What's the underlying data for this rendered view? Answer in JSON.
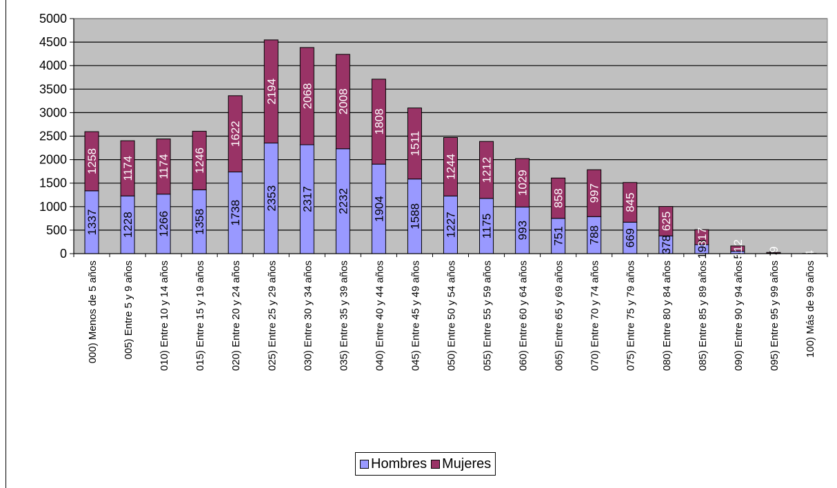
{
  "chart_data": {
    "type": "bar",
    "stacked": true,
    "title": "",
    "xlabel": "",
    "ylabel": "",
    "ylim": [
      0,
      5000
    ],
    "yticks": [
      0,
      500,
      1000,
      1500,
      2000,
      2500,
      3000,
      3500,
      4000,
      4500,
      5000
    ],
    "grid": true,
    "legend_position": "bottom",
    "plot_background": "#c0c0c0",
    "categories": [
      "000) Menos de 5 años",
      "005) Entre  5 y  9 años",
      "010) Entre  10 y  14 años",
      "015) Entre  15 y  19 años",
      "020) Entre  20 y  24 años",
      "025) Entre  25 y  29 años",
      "030) Entre  30 y  34 años",
      "035) Entre  35 y  39 años",
      "040) Entre  40 y  44 años",
      "045) Entre  45 y  49 años",
      "050) Entre  50 y  54 años",
      "055) Entre  55 y  59 años",
      "060) Entre  60 y  64 años",
      "065) Entre  65 y  69 años",
      "070) Entre  70 y  74 años",
      "075) Entre  75 y  79 años",
      "080) Entre  80 y  84 años",
      "085) Entre  85 y  89 años",
      "090) Entre  90 y  94 años",
      "095) Entre  95 y  99 años",
      "100) Más de 99 años"
    ],
    "series": [
      {
        "name": "Hombres",
        "color": "#9999ff",
        "values": [
          1337,
          1228,
          1266,
          1358,
          1738,
          2353,
          2317,
          2232,
          1904,
          1588,
          1227,
          1175,
          993,
          751,
          788,
          669,
          378,
          193,
          51,
          7,
          0
        ]
      },
      {
        "name": "Mujeres",
        "color": "#993366",
        "values": [
          1258,
          1174,
          1174,
          1246,
          1622,
          2194,
          2068,
          2008,
          1808,
          1511,
          1244,
          1212,
          1029,
          858,
          997,
          845,
          625,
          317,
          112,
          19,
          4
        ]
      }
    ]
  }
}
